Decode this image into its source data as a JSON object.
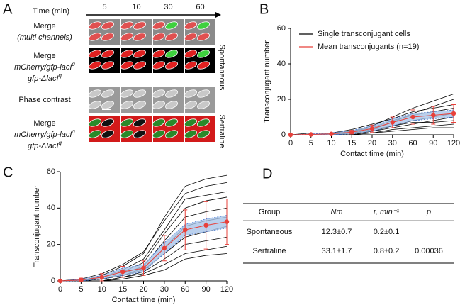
{
  "panel_a": {
    "label": "A",
    "time_label": "Time (min)",
    "times": [
      "5",
      "10",
      "30",
      "60"
    ],
    "rows": [
      {
        "lines": [
          {
            "text": "Merge"
          },
          {
            "text": "(multi channels)"
          }
        ]
      },
      {
        "lines": [
          {
            "text": "Merge"
          },
          {
            "text": "mCherry/gfp-lacI",
            "sup": "q"
          },
          {
            "text": "gfp-ΔlacI",
            "sup": "q"
          }
        ]
      },
      {
        "lines": [
          {
            "text": "Phase contrast"
          }
        ]
      },
      {
        "lines": [
          {
            "text": "Merge"
          },
          {
            "text": "mCherry/gfp-lacI",
            "sup": "q"
          },
          {
            "text": "gfp-ΔlacI",
            "sup": "q"
          }
        ]
      }
    ],
    "conditions": [
      "Spontaneous",
      "Sertraline"
    ]
  },
  "chart_data": [
    {
      "type": "line",
      "label": "B",
      "x_label": "Contact time (min)",
      "y_label": "Transconjugant number",
      "categories": [
        "0",
        "5",
        "10",
        "15",
        "20",
        "30",
        "60",
        "90",
        "120"
      ],
      "ylim": [
        0,
        60
      ],
      "yticks": [
        0,
        20,
        40,
        60
      ],
      "legend": "top-left",
      "band": {
        "color": "#a9c4e8",
        "edge": "#3b6fd0",
        "lower": [
          0,
          0,
          0,
          0.5,
          2,
          5,
          8,
          9,
          10
        ],
        "upper": [
          0,
          0.5,
          1,
          2.5,
          5,
          9,
          12,
          13,
          14
        ]
      },
      "series": [
        {
          "name": "Single transconjugant cells",
          "color": "#000000",
          "values": [
            0,
            0,
            1,
            2,
            5,
            10,
            15,
            19,
            23
          ]
        },
        {
          "color": "#000000",
          "values": [
            0,
            0,
            0,
            1,
            3,
            7,
            12,
            16,
            20
          ]
        },
        {
          "color": "#000000",
          "values": [
            0,
            1,
            1,
            3,
            6,
            9,
            13,
            15,
            17
          ]
        },
        {
          "color": "#000000",
          "values": [
            0,
            0,
            1,
            2,
            4,
            8,
            11,
            13,
            15
          ]
        },
        {
          "color": "#000000",
          "values": [
            0,
            0,
            0,
            1,
            2,
            5,
            8,
            10,
            12
          ]
        },
        {
          "color": "#000000",
          "values": [
            0,
            0,
            0,
            0,
            2,
            4,
            6,
            8,
            10
          ]
        },
        {
          "color": "#000000",
          "values": [
            0,
            0,
            1,
            1,
            3,
            5,
            7,
            7,
            8
          ]
        },
        {
          "color": "#000000",
          "values": [
            0,
            0,
            0,
            1,
            1,
            3,
            4,
            5,
            6
          ]
        },
        {
          "color": "#000000",
          "values": [
            0,
            0,
            0,
            0,
            1,
            2,
            3,
            4,
            4
          ]
        },
        {
          "name": "Mean transconjugants (n=19)",
          "color": "#e8403a",
          "mean": true,
          "values": [
            0,
            0.2,
            0.5,
            1.5,
            3.5,
            7,
            10,
            11,
            12
          ],
          "errors": [
            0,
            0.3,
            0.5,
            1,
            2,
            3,
            4,
            5,
            5
          ]
        }
      ]
    },
    {
      "type": "line",
      "label": "C",
      "x_label": "Contact time (min)",
      "y_label": "Transconjugant number",
      "categories": [
        "0",
        "5",
        "10",
        "15",
        "20",
        "30",
        "60",
        "90",
        "120"
      ],
      "ylim": [
        0,
        60
      ],
      "yticks": [
        0,
        20,
        40,
        60
      ],
      "band": {
        "color": "#a9c4e8",
        "edge": "#3b6fd0",
        "lower": [
          0,
          0,
          1,
          3,
          5,
          15,
          25,
          27,
          29
        ],
        "upper": [
          0,
          1,
          3,
          7,
          9,
          21,
          31,
          34,
          36
        ]
      },
      "series": [
        {
          "color": "#000000",
          "values": [
            0,
            0,
            3,
            8,
            15,
            35,
            52,
            56,
            58
          ]
        },
        {
          "color": "#000000",
          "values": [
            0,
            1,
            4,
            9,
            16,
            33,
            48,
            52,
            54
          ]
        },
        {
          "color": "#000000",
          "values": [
            0,
            0,
            2,
            6,
            12,
            28,
            45,
            47,
            49
          ]
        },
        {
          "color": "#000000",
          "values": [
            0,
            0,
            2,
            5,
            10,
            26,
            40,
            44,
            46
          ]
        },
        {
          "color": "#000000",
          "values": [
            0,
            0,
            1,
            4,
            8,
            22,
            35,
            38,
            40
          ]
        },
        {
          "color": "#000000",
          "values": [
            0,
            0,
            1,
            3,
            7,
            18,
            30,
            33,
            35
          ]
        },
        {
          "color": "#000000",
          "values": [
            0,
            0,
            1,
            3,
            6,
            15,
            24,
            27,
            30
          ]
        },
        {
          "color": "#000000",
          "values": [
            0,
            0,
            0,
            2,
            5,
            12,
            20,
            22,
            24
          ]
        },
        {
          "color": "#000000",
          "values": [
            0,
            0,
            0,
            2,
            4,
            9,
            15,
            17,
            19
          ]
        },
        {
          "color": "#000000",
          "values": [
            0,
            0,
            0,
            1,
            3,
            6,
            12,
            14,
            15
          ]
        },
        {
          "color": "#e8403a",
          "mean": true,
          "values": [
            0,
            0.5,
            2,
            5,
            7,
            18,
            28,
            30.5,
            32.5
          ],
          "errors": [
            0,
            1,
            2,
            3,
            4,
            7,
            11,
            13,
            12.5
          ]
        }
      ]
    }
  ],
  "panel_d": {
    "label": "D",
    "header": [
      "Group",
      "Nm",
      "r, min⁻¹",
      "p"
    ],
    "rows": [
      [
        "Spontaneous",
        "12.3±0.7",
        "0.2±0.1"
      ],
      [
        "Sertraline",
        "33.1±1.7",
        "0.8±0.2",
        "0.00036"
      ]
    ]
  }
}
